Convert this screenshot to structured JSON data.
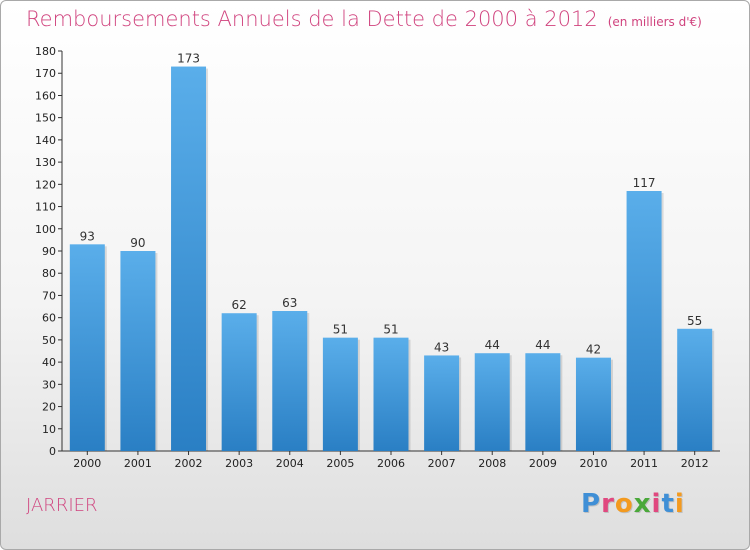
{
  "header": {
    "title": "Remboursements Annuels de la Dette de 2000 à 2012",
    "unit": "(en milliers d'€)"
  },
  "footer": {
    "town": "JARRIER",
    "logo": "Proxiti"
  },
  "colors": {
    "accent": "#d0437e",
    "bar_top": "#5aaeea",
    "bar_bottom": "#2a7fc4",
    "logo_letters": [
      "#3f8fd6",
      "#e0487f",
      "#f39a1f",
      "#4aa83a",
      "#e0487f",
      "#3f8fd6",
      "#f39a1f"
    ]
  },
  "chart_data": {
    "type": "bar",
    "title": "Remboursements Annuels de la Dette de 2000 à 2012",
    "xlabel": "",
    "ylabel": "",
    "categories": [
      "2000",
      "2001",
      "2002",
      "2003",
      "2004",
      "2005",
      "2006",
      "2007",
      "2008",
      "2009",
      "2010",
      "2011",
      "2012"
    ],
    "values": [
      93,
      90,
      173,
      62,
      63,
      51,
      51,
      43,
      44,
      44,
      42,
      117,
      55
    ],
    "ylim": [
      0,
      180
    ],
    "yticks": [
      0,
      10,
      20,
      30,
      40,
      50,
      60,
      70,
      80,
      90,
      100,
      110,
      120,
      130,
      140,
      150,
      160,
      170,
      180
    ],
    "grid": false,
    "data_labels": true
  }
}
